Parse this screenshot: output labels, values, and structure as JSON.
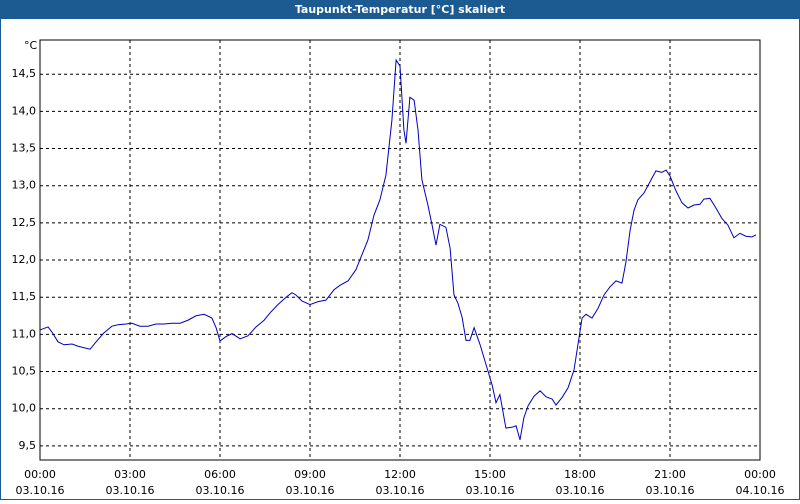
{
  "chart_data": {
    "type": "line",
    "title": "Taupunkt-Temperatur [°C] skaliert",
    "y_unit": "°C",
    "x": [
      0,
      0.27,
      0.4,
      0.6,
      0.8,
      1.07,
      1.27,
      1.47,
      1.67,
      1.87,
      2.13,
      2.4,
      2.6,
      2.87,
      3.07,
      3.33,
      3.6,
      3.87,
      4.13,
      4.4,
      4.67,
      4.93,
      5.2,
      5.47,
      5.73,
      5.87,
      6,
      6.2,
      6.4,
      6.67,
      6.93,
      7.2,
      7.47,
      7.67,
      7.93,
      8.2,
      8.4,
      8.53,
      8.73,
      9,
      9.27,
      9.53,
      9.8,
      10,
      10.27,
      10.53,
      10.73,
      10.93,
      11.13,
      11.33,
      11.53,
      11.73,
      11.87,
      12,
      12.13,
      12.2,
      12.33,
      12.47,
      12.6,
      12.73,
      12.93,
      13.07,
      13.2,
      13.33,
      13.53,
      13.67,
      13.8,
      13.93,
      14.07,
      14.2,
      14.33,
      14.47,
      14.67,
      14.87,
      15.07,
      15.2,
      15.33,
      15.53,
      15.73,
      15.87,
      16,
      16.13,
      16.27,
      16.47,
      16.67,
      16.87,
      17.07,
      17.2,
      17.4,
      17.6,
      17.8,
      17.93,
      18.07,
      18.2,
      18.4,
      18.6,
      18.8,
      19,
      19.2,
      19.4,
      19.53,
      19.67,
      19.8,
      19.93,
      20.13,
      20.33,
      20.53,
      20.73,
      20.87,
      21,
      21.2,
      21.4,
      21.6,
      21.8,
      22,
      22.13,
      22.33,
      22.53,
      22.73,
      22.93,
      23.13,
      23.33,
      23.53,
      23.73,
      23.87
    ],
    "series": [
      {
        "name": "Taupunkt-Temperatur",
        "color": "#0000c0",
        "values": [
          11.06,
          11.1,
          11.03,
          10.9,
          10.86,
          10.87,
          10.84,
          10.82,
          10.8,
          10.9,
          11.02,
          11.11,
          11.13,
          11.14,
          11.15,
          11.11,
          11.11,
          11.14,
          11.14,
          11.15,
          11.15,
          11.19,
          11.25,
          11.27,
          11.22,
          11.09,
          10.91,
          10.97,
          11.01,
          10.94,
          10.98,
          11.1,
          11.19,
          11.29,
          11.4,
          11.5,
          11.56,
          11.53,
          11.45,
          11.4,
          11.44,
          11.46,
          11.6,
          11.66,
          11.72,
          11.87,
          12.07,
          12.27,
          12.6,
          12.81,
          13.14,
          13.88,
          14.69,
          14.61,
          13.75,
          13.57,
          14.19,
          14.15,
          13.75,
          13.08,
          12.74,
          12.47,
          12.2,
          12.48,
          12.44,
          12.16,
          11.53,
          11.42,
          11.23,
          10.92,
          10.92,
          11.09,
          10.86,
          10.59,
          10.32,
          10.08,
          10.19,
          9.74,
          9.75,
          9.77,
          9.58,
          9.88,
          10.04,
          10.17,
          10.24,
          10.16,
          10.13,
          10.05,
          10.15,
          10.28,
          10.52,
          10.86,
          11.22,
          11.27,
          11.22,
          11.35,
          11.53,
          11.64,
          11.72,
          11.69,
          11.97,
          12.4,
          12.67,
          12.81,
          12.9,
          13.05,
          13.2,
          13.18,
          13.21,
          13.13,
          12.93,
          12.77,
          12.7,
          12.74,
          12.75,
          12.82,
          12.83,
          12.7,
          12.56,
          12.47,
          12.3,
          12.36,
          12.32,
          12.31,
          12.34
        ]
      }
    ],
    "xlim": [
      0,
      24
    ],
    "xticks": [
      {
        "value": 0,
        "label": "00:00"
      },
      {
        "value": 3,
        "label": "03:00"
      },
      {
        "value": 6,
        "label": "06:00"
      },
      {
        "value": 9,
        "label": "09:00"
      },
      {
        "value": 12,
        "label": "12:00"
      },
      {
        "value": 15,
        "label": "15:00"
      },
      {
        "value": 18,
        "label": "18:00"
      },
      {
        "value": 21,
        "label": "21:00"
      },
      {
        "value": 24,
        "label": "00:00"
      }
    ],
    "xtick_dates": [
      "03.10.16",
      "03.10.16",
      "03.10.16",
      "03.10.16",
      "03.10.16",
      "03.10.16",
      "03.10.16",
      "03.10.16",
      "04.10.16"
    ],
    "ylim": [
      9.31,
      14.96
    ],
    "yticks": [
      {
        "value": 9.5,
        "label": "9,5"
      },
      {
        "value": 10,
        "label": "10,0"
      },
      {
        "value": 10.5,
        "label": "10,5"
      },
      {
        "value": 11,
        "label": "11,0"
      },
      {
        "value": 11.5,
        "label": "11,5"
      },
      {
        "value": 12,
        "label": "12,0"
      },
      {
        "value": 12.5,
        "label": "12,5"
      },
      {
        "value": 13,
        "label": "13,0"
      },
      {
        "value": 13.5,
        "label": "13,5"
      },
      {
        "value": 14,
        "label": "14,0"
      },
      {
        "value": 14.5,
        "label": "14,5"
      }
    ],
    "grid": true
  }
}
